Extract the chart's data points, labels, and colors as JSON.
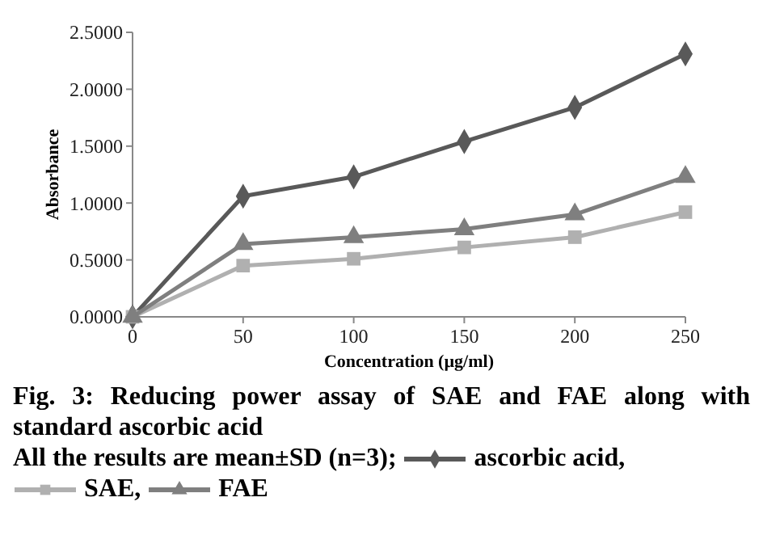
{
  "chart_data": {
    "type": "line",
    "title": "Fig. 3: Reducing power assay of SAE and FAE along with standard ascorbic acid",
    "xlabel": "Concentration (µg/ml)",
    "ylabel": "Absorbance",
    "annotations": [
      "All the results are mean±SD (n=3);"
    ],
    "x": [
      0,
      50,
      100,
      150,
      200,
      250
    ],
    "xlim": [
      0,
      250
    ],
    "xticks": [
      0,
      50,
      100,
      150,
      200,
      250
    ],
    "ylim": [
      0,
      2.5
    ],
    "yticks": [
      {
        "value": 0,
        "label": "0.0000"
      },
      {
        "value": 0.5,
        "label": "0.5000"
      },
      {
        "value": 1,
        "label": "1.0000"
      },
      {
        "value": 1.5,
        "label": "1.5000"
      },
      {
        "value": 2,
        "label": "2.0000"
      },
      {
        "value": 2.5,
        "label": "2.5000"
      }
    ],
    "grid": false,
    "legend": "bottom",
    "line_style": "solid",
    "series": [
      {
        "name": "ascorbic acid,",
        "color": "#595959",
        "marker": "diamond",
        "values": [
          0,
          1.06,
          1.23,
          1.54,
          1.84,
          2.31
        ]
      },
      {
        "name": "SAE,",
        "color": "#b0b0b0",
        "marker": "square",
        "values": [
          0,
          0.45,
          0.51,
          0.61,
          0.7,
          0.92
        ]
      },
      {
        "name": "FAE",
        "color": "#7f7f7f",
        "marker": "triangle",
        "values": [
          0,
          0.64,
          0.7,
          0.77,
          0.9,
          1.23
        ]
      }
    ]
  }
}
